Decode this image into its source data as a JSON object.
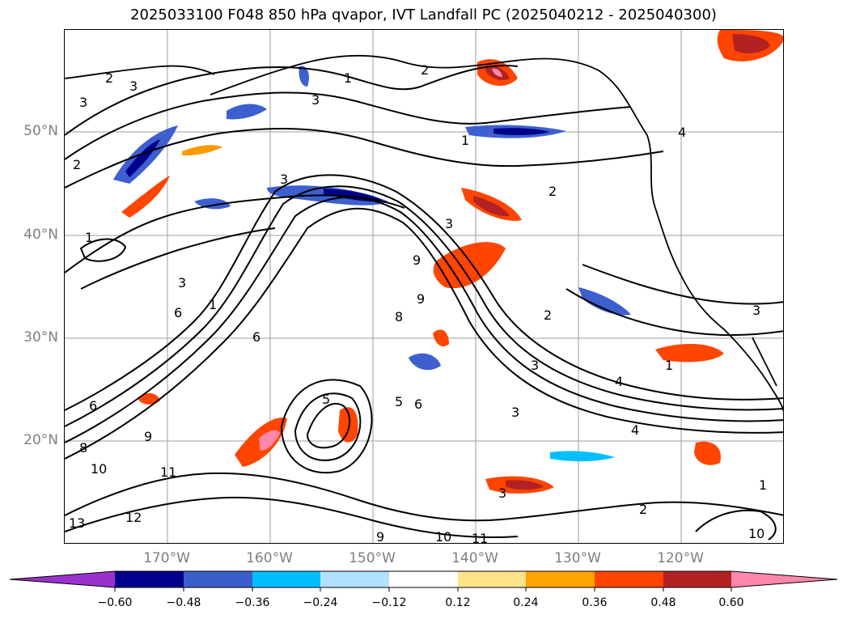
{
  "title": "2025033100 F048 850 hPa qvapor, IVT Landfall PC (2025040212 - 2025040300)",
  "map": {
    "lat_labels": [
      "50°N",
      "40°N",
      "30°N",
      "20°N"
    ],
    "lon_labels": [
      "170°W",
      "160°W",
      "150°W",
      "140°W",
      "130°W",
      "120°W"
    ],
    "contour_labels": [
      "3",
      "2",
      "3",
      "1",
      "2",
      "2",
      "4",
      "1",
      "3",
      "2",
      "1",
      "3",
      "9",
      "9",
      "8",
      "3",
      "6",
      "1",
      "6",
      "2",
      "3",
      "1",
      "3",
      "6",
      "5",
      "5",
      "6",
      "9",
      "8",
      "10",
      "11",
      "12",
      "13",
      "3",
      "4",
      "2",
      "1",
      "10",
      "9",
      "10",
      "11",
      "3",
      "4",
      "3"
    ],
    "colors": {
      "gridline": "#9e9e9e",
      "coastline": "#000000",
      "neg_strong": "#00008b",
      "neg_mid": "#3d5fcf",
      "neg_light": "#00bfff",
      "pos_light": "#ffe38a",
      "pos_mid": "#ff9a00",
      "pos_strong": "#ff4500",
      "pos_dark": "#b22222",
      "pos_max": "#ff88aa"
    }
  },
  "colorbar": {
    "colors": [
      "#9932cc",
      "#00008b",
      "#3a5fcd",
      "#00bfff",
      "#b0e2ff",
      "#ffffff",
      "#ffe38a",
      "#ffa500",
      "#ff4500",
      "#b22222",
      "#ff88aa"
    ],
    "ticks": [
      "−0.60",
      "−0.48",
      "−0.36",
      "−0.24",
      "−0.12",
      "0.12",
      "0.24",
      "0.36",
      "0.48",
      "0.60"
    ]
  }
}
